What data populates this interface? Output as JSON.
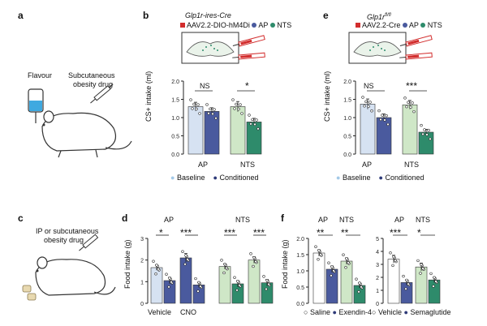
{
  "colors": {
    "blue_light": "#d6e2f2",
    "blue_dark": "#4a5a9e",
    "green_light": "#cfe7c7",
    "green_dark": "#2e8b6b",
    "teal": "#2ab5a0",
    "red": "#d22d2d",
    "dot_dark": "#1f2a55",
    "dot_green": "#2e8b6b"
  },
  "panel_a": {
    "label": "a",
    "flavour": "Flavour",
    "drug_line1": "Subcutaneous",
    "drug_line2": "obesity drug"
  },
  "panel_b": {
    "label": "b",
    "title": "Glp1r-ires-Cre",
    "legend_virus": "AAV2.2-DIO-hM4Di",
    "legend_ap": "AP",
    "legend_nts": "NTS",
    "ylabel": "CS+ intake (ml)",
    "sig_ap": "NS",
    "sig_nts": "*",
    "group_ap": "AP",
    "group_nts": "NTS",
    "legend_baseline": "Baseline",
    "legend_conditioned": "Conditioned"
  },
  "panel_e": {
    "label": "e",
    "title": "Glp1r",
    "title_sup": "fl/fl",
    "legend_virus": "AAV2.2-Cre",
    "legend_ap": "AP",
    "legend_nts": "NTS",
    "ylabel": "CS+ intake (ml)",
    "sig_ap": "NS",
    "sig_nts": "***",
    "group_ap": "AP",
    "group_nts": "NTS",
    "legend_baseline": "Baseline",
    "legend_conditioned": "Conditioned"
  },
  "panel_c": {
    "label": "c",
    "drug_line1": "IP or subcutaneous",
    "drug_line2": "obesity drug"
  },
  "panel_d": {
    "label": "d",
    "ylabel": "Food intake (g)",
    "group_ap": "AP",
    "group_nts": "NTS",
    "sig_ap_vehicle": "*",
    "sig_ap_cno": "***",
    "sig_nts_vehicle": "***",
    "sig_nts_cno": "***",
    "x_vehicle": "Vehicle",
    "x_cno": "CNO"
  },
  "panel_f": {
    "label": "f",
    "ylabel": "Food intake (g)",
    "group_ap": "AP",
    "group_nts": "NTS",
    "sig_ap_left": "**",
    "sig_nts_left": "**",
    "sig_ap_right": "***",
    "sig_nts_right": "*",
    "legend_saline": "Saline",
    "legend_exendin": "Exendin-4",
    "legend_vehicle": "Vehicle",
    "legend_semaglutide": "Semaglutide"
  },
  "chart_data": [
    {
      "type": "bar",
      "panel": "b",
      "ylabel": "CS+ intake (ml)",
      "ylim": [
        0,
        2.0
      ],
      "yticks": [
        0,
        0.5,
        1.0,
        1.5,
        2.0
      ],
      "categories": [
        "AP",
        "NTS"
      ],
      "series": [
        {
          "name": "Baseline",
          "values": [
            1.3,
            1.3
          ],
          "errors": [
            0.12,
            0.14
          ]
        },
        {
          "name": "Conditioned",
          "values": [
            1.17,
            0.88
          ],
          "errors": [
            0.1,
            0.1
          ]
        }
      ],
      "significance": [
        "NS",
        "*"
      ]
    },
    {
      "type": "bar",
      "panel": "e",
      "ylabel": "CS+ intake (ml)",
      "ylim": [
        0,
        2.0
      ],
      "yticks": [
        0,
        0.5,
        1.0,
        1.5,
        2.0
      ],
      "categories": [
        "AP",
        "NTS"
      ],
      "series": [
        {
          "name": "Baseline",
          "values": [
            1.37,
            1.35
          ],
          "errors": [
            0.14,
            0.12
          ]
        },
        {
          "name": "Conditioned",
          "values": [
            1.0,
            0.6
          ],
          "errors": [
            0.1,
            0.08
          ]
        }
      ],
      "significance": [
        "NS",
        "***"
      ]
    },
    {
      "type": "bar",
      "panel": "d",
      "ylabel": "Food intake (g)",
      "ylim": [
        0,
        3
      ],
      "yticks": [
        0,
        1,
        2,
        3
      ],
      "groups": [
        {
          "name": "AP",
          "categories": [
            "Vehicle",
            "CNO"
          ],
          "values": [
            1.65,
            1.05,
            2.1,
            0.85
          ]
        },
        {
          "name": "NTS",
          "categories": [
            "Vehicle",
            "CNO"
          ],
          "values": [
            1.7,
            0.9,
            2.0,
            0.95
          ]
        }
      ],
      "significance": [
        "*",
        "***",
        "***",
        "***"
      ]
    },
    {
      "type": "bar",
      "panel": "f",
      "ylabel": "Food intake (g)",
      "ylim": [
        0,
        2.0
      ],
      "yticks": [
        0,
        0.5,
        1.0,
        1.5,
        2.0
      ],
      "subplots": [
        {
          "series": [
            "Saline",
            "Exendin-4"
          ],
          "categories": [
            "AP",
            "NTS"
          ],
          "values": [
            [
              1.55,
              1.3
            ],
            [
              1.05,
              0.55
            ]
          ],
          "significance": [
            "**",
            "**"
          ]
        },
        {
          "series": [
            "Vehicle",
            "Semaglutide"
          ],
          "categories": [
            "AP",
            "NTS"
          ],
          "values": [
            [
              3.4,
              2.8
            ],
            [
              1.6,
              1.8
            ]
          ],
          "ylim": [
            0,
            5
          ],
          "significance": [
            "***",
            "*"
          ]
        }
      ]
    }
  ]
}
